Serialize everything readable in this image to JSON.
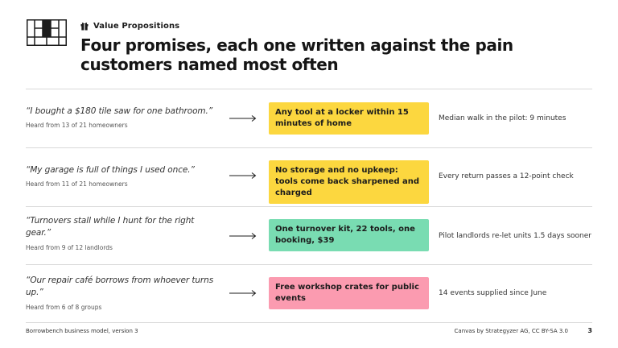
{
  "header": {
    "kicker": "Value Propositions",
    "title": "Four promises, each one written against the pain customers named most often"
  },
  "colors": {
    "yellow": "#fcd73f",
    "green": "#79dcb2",
    "pink": "#fb9bb0",
    "rule": "#d9d9d9"
  },
  "rows": [
    {
      "quote": "“I bought a $180 tile saw for one bathroom.”",
      "source": "Heard from 13 of 21 homeowners",
      "promise": "Any tool at a locker within 15 minutes of home",
      "evidence": "Median walk in the pilot: 9 minutes",
      "color": "yellow"
    },
    {
      "quote": "“My garage is full of things I used once.”",
      "source": "Heard from 11 of 21 homeowners",
      "promise": "No storage and no upkeep: tools come back sharpened and charged",
      "evidence": "Every return passes a 12-point check",
      "color": "yellow"
    },
    {
      "quote": "“Turnovers stall while I hunt for the right gear.”",
      "source": "Heard from 9 of 12 landlords",
      "promise": "One turnover kit, 22 tools, one booking, $39",
      "evidence": "Pilot landlords re-let units 1.5 days sooner",
      "color": "green"
    },
    {
      "quote": "“Our repair café borrows from whoever turns up.”",
      "source": "Heard from 6 of 8 groups",
      "promise": "Free workshop crates for public events",
      "evidence": "14 events supplied since June",
      "color": "pink"
    }
  ],
  "footer": {
    "left": "Borrowbench business model, version 3",
    "right": "Canvas by Strategyzer AG, CC BY-SA 3.0",
    "page": "3"
  }
}
